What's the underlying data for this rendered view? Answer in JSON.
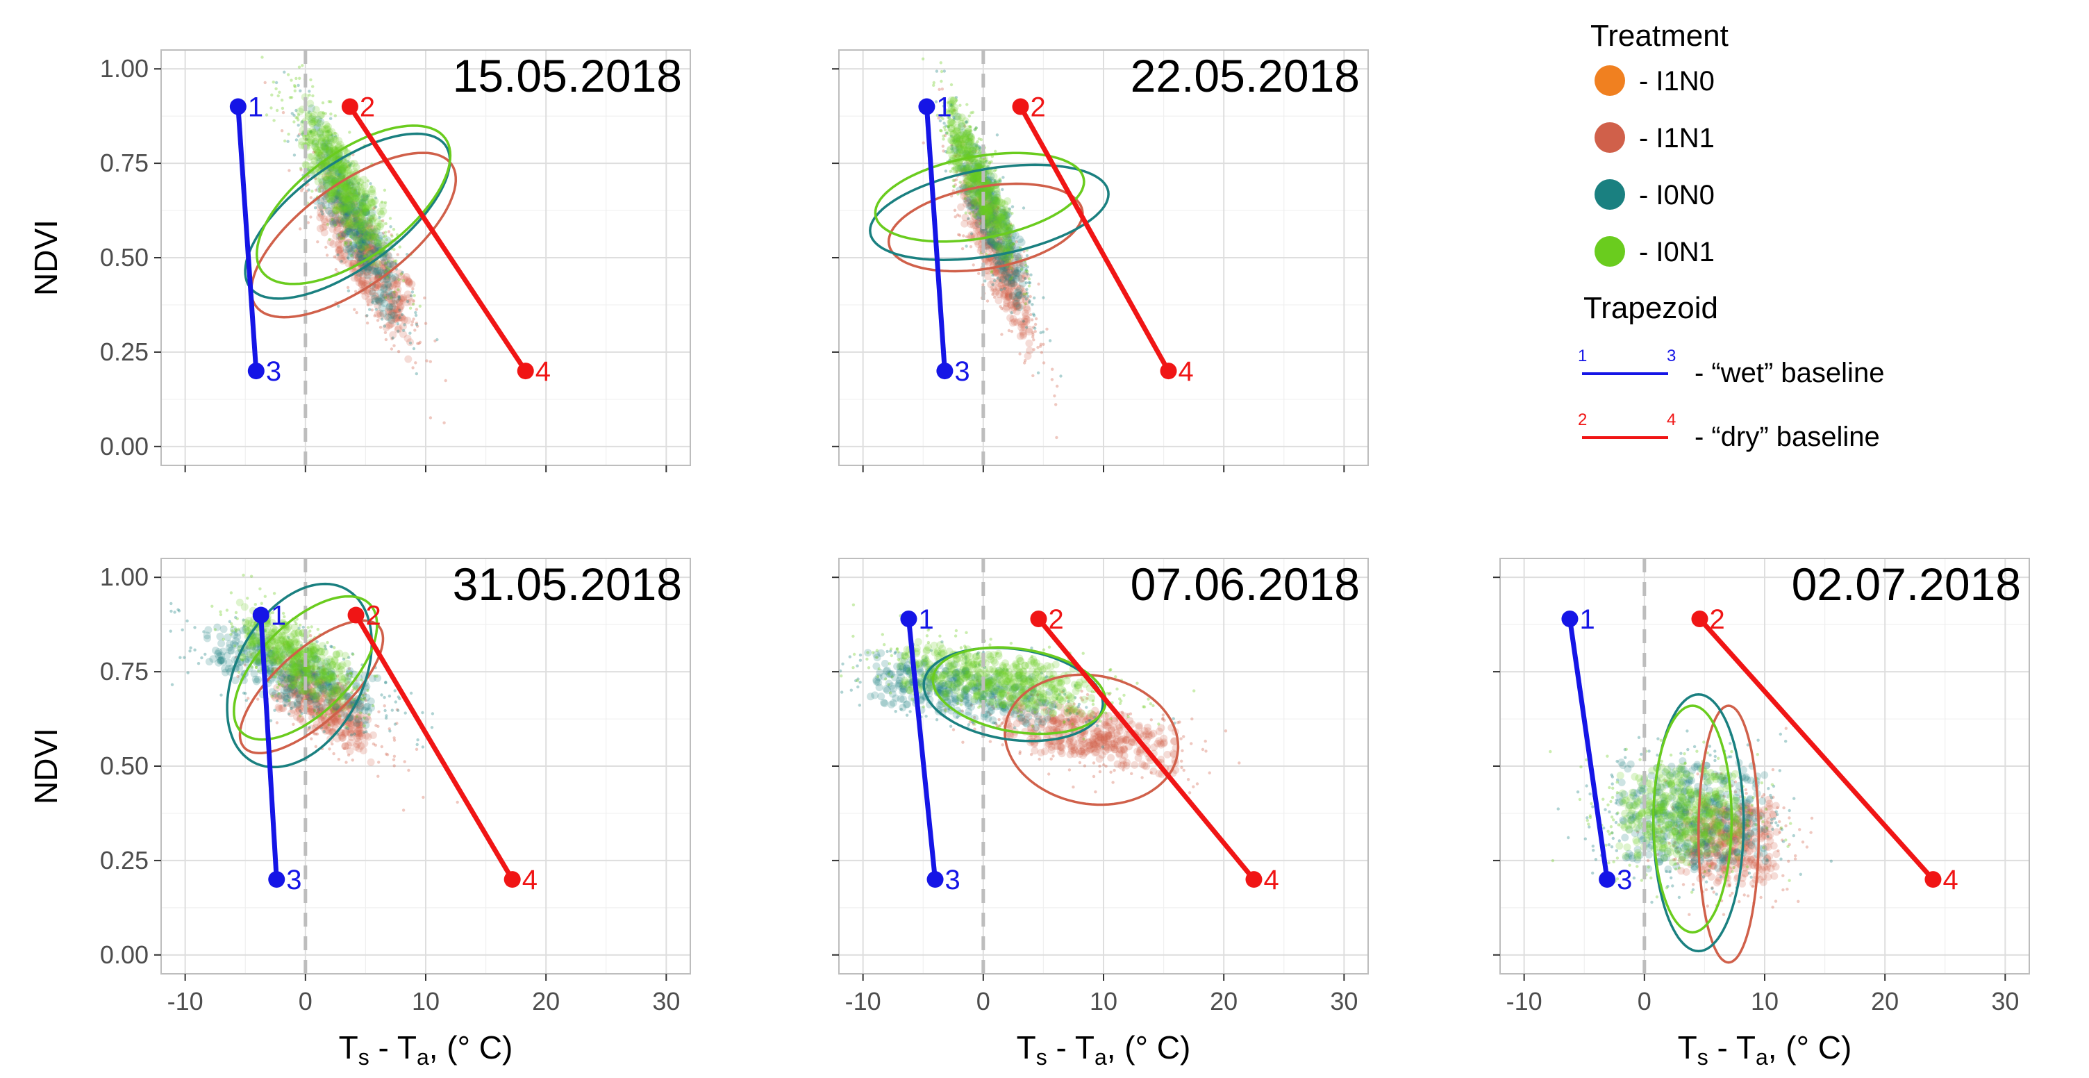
{
  "chart_data": {
    "type": "scatter",
    "axes": {
      "xlabel_main": "T",
      "xlabel_sub1": "s",
      "xlabel_mid": " - T",
      "xlabel_sub2": "a",
      "xlabel_tail": ", (° C)",
      "ylabel": "NDVI",
      "xlim": [
        -12,
        32
      ],
      "ylim": [
        -0.05,
        1.05
      ],
      "xticks": [
        -10,
        0,
        10,
        20,
        30
      ],
      "xtick_labels": [
        "-10",
        "0",
        "10",
        "20",
        "30"
      ],
      "yticks": [
        0,
        0.25,
        0.5,
        0.75,
        1.0
      ],
      "ytick_labels": [
        "0.00",
        "0.25",
        "0.50",
        "0.75",
        "1.00"
      ]
    },
    "legend": {
      "treatment_title": "Treatment",
      "treatments": [
        {
          "label": "- I1N0",
          "color": "#F08020"
        },
        {
          "label": "- I1N1",
          "color": "#D0604A"
        },
        {
          "label": "- I0N0",
          "color": "#1A8080"
        },
        {
          "label": "- I0N1",
          "color": "#6ACC1E"
        }
      ],
      "trapezoid_title": "Trapezoid",
      "baselines": [
        {
          "label": "- “wet” baseline",
          "color": "#1515E6",
          "start": "1",
          "end": "3"
        },
        {
          "label": "- “dry” baseline",
          "color": "#F01515",
          "start": "2",
          "end": "4"
        }
      ]
    },
    "panels": [
      {
        "date": "15.05.2018",
        "wet": {
          "p1": [
            -5.6,
            0.9
          ],
          "p3": [
            -4.1,
            0.2
          ]
        },
        "dry": {
          "p2": [
            3.7,
            0.9
          ],
          "p4": [
            18.3,
            0.2
          ]
        },
        "ellipses": [
          {
            "treatment": "I1N1",
            "cx": 4.0,
            "cy": 0.56,
            "rx": 8.5,
            "ry": 0.16,
            "angle": -54
          },
          {
            "treatment": "I0N0",
            "cx": 3.5,
            "cy": 0.61,
            "rx": 8.6,
            "ry": 0.16,
            "angle": -54
          },
          {
            "treatment": "I0N1",
            "cx": 4.0,
            "cy": 0.64,
            "rx": 8.8,
            "ry": 0.15,
            "angle": -54
          }
        ],
        "clouds": [
          {
            "treatment": "I1N1",
            "cx": 5.0,
            "cy": 0.5,
            "sx": 2.4,
            "sy": 0.13,
            "corr": -0.85,
            "n": 520
          },
          {
            "treatment": "I0N0",
            "cx": 4.0,
            "cy": 0.6,
            "sx": 2.2,
            "sy": 0.14,
            "corr": -0.85,
            "n": 420
          },
          {
            "treatment": "I0N1",
            "cx": 3.0,
            "cy": 0.7,
            "sx": 2.2,
            "sy": 0.12,
            "corr": -0.85,
            "n": 560
          }
        ]
      },
      {
        "date": "22.05.2018",
        "wet": {
          "p1": [
            -4.7,
            0.9
          ],
          "p3": [
            -3.2,
            0.2
          ]
        },
        "dry": {
          "p2": [
            3.1,
            0.9
          ],
          "p4": [
            15.4,
            0.2
          ]
        },
        "ellipses": [
          {
            "treatment": "I1N1",
            "cx": 0.2,
            "cy": 0.58,
            "rx": 6.8,
            "ry": 0.13,
            "angle": -80
          },
          {
            "treatment": "I0N0",
            "cx": 0.5,
            "cy": 0.62,
            "rx": 7.2,
            "ry": 0.16,
            "angle": -80
          },
          {
            "treatment": "I0N1",
            "cx": -0.3,
            "cy": 0.66,
            "rx": 6.8,
            "ry": 0.14,
            "angle": -80
          }
        ],
        "clouds": [
          {
            "treatment": "I1N1",
            "cx": 1.0,
            "cy": 0.52,
            "sx": 1.8,
            "sy": 0.14,
            "corr": -0.85,
            "n": 460
          },
          {
            "treatment": "I0N0",
            "cx": 0.5,
            "cy": 0.62,
            "sx": 1.8,
            "sy": 0.13,
            "corr": -0.85,
            "n": 380
          },
          {
            "treatment": "I0N1",
            "cx": -0.3,
            "cy": 0.7,
            "sx": 1.6,
            "sy": 0.11,
            "corr": -0.85,
            "n": 520
          }
        ]
      },
      {
        "date": "31.05.2018",
        "wet": {
          "p1": [
            -3.7,
            0.9
          ],
          "p3": [
            -2.4,
            0.2
          ]
        },
        "dry": {
          "p2": [
            4.2,
            0.9
          ],
          "p4": [
            17.2,
            0.2
          ]
        },
        "ellipses": [
          {
            "treatment": "I1N1",
            "cx": 0.5,
            "cy": 0.71,
            "rx": 6.0,
            "ry": 0.12,
            "angle": -48
          },
          {
            "treatment": "I0N0",
            "cx": -0.5,
            "cy": 0.74,
            "rx": 10.5,
            "ry": 0.13,
            "angle": -28
          },
          {
            "treatment": "I0N1",
            "cx": 0.0,
            "cy": 0.76,
            "rx": 7.5,
            "ry": 0.12,
            "angle": -45
          }
        ],
        "clouds": [
          {
            "treatment": "I1N1",
            "cx": 1.5,
            "cy": 0.66,
            "sx": 2.6,
            "sy": 0.07,
            "corr": -0.7,
            "n": 440
          },
          {
            "treatment": "I0N0",
            "cx": -1.0,
            "cy": 0.74,
            "sx": 4.5,
            "sy": 0.07,
            "corr": -0.7,
            "n": 420
          },
          {
            "treatment": "I0N1",
            "cx": -1.0,
            "cy": 0.79,
            "sx": 2.8,
            "sy": 0.07,
            "corr": -0.7,
            "n": 520
          }
        ]
      },
      {
        "date": "07.06.2018",
        "wet": {
          "p1": [
            -6.2,
            0.89
          ],
          "p3": [
            -4.0,
            0.2
          ]
        },
        "dry": {
          "p2": [
            4.6,
            0.89
          ],
          "p4": [
            22.5,
            0.2
          ]
        },
        "ellipses": [
          {
            "treatment": "I1N1",
            "cx": 9.0,
            "cy": 0.57,
            "rx": 14.5,
            "ry": 0.085,
            "angle": -10
          },
          {
            "treatment": "I0N0",
            "cx": 2.5,
            "cy": 0.69,
            "rx": 15.0,
            "ry": 0.06,
            "angle": -8
          },
          {
            "treatment": "I0N1",
            "cx": 3.0,
            "cy": 0.7,
            "rx": 14.5,
            "ry": 0.055,
            "angle": -9
          }
        ],
        "clouds": [
          {
            "treatment": "I1N1",
            "cx": 9.0,
            "cy": 0.58,
            "sx": 4.5,
            "sy": 0.05,
            "corr": -0.5,
            "n": 480
          },
          {
            "treatment": "I0N0",
            "cx": -2.0,
            "cy": 0.7,
            "sx": 5.0,
            "sy": 0.05,
            "corr": -0.5,
            "n": 440
          },
          {
            "treatment": "I0N1",
            "cx": 1.0,
            "cy": 0.73,
            "sx": 5.0,
            "sy": 0.05,
            "corr": -0.5,
            "n": 560
          }
        ]
      },
      {
        "date": "02.07.2018",
        "wet": {
          "p1": [
            -6.2,
            0.89
          ],
          "p3": [
            -3.1,
            0.2
          ]
        },
        "dry": {
          "p2": [
            4.6,
            0.89
          ],
          "p4": [
            24.0,
            0.2
          ]
        },
        "ellipses": [
          {
            "treatment": "I1N1",
            "cx": 7.0,
            "cy": 0.32,
            "rx": 5.0,
            "ry": 0.17,
            "angle": 0
          },
          {
            "treatment": "I0N0",
            "cx": 4.5,
            "cy": 0.35,
            "rx": 7.5,
            "ry": 0.17,
            "angle": 0
          },
          {
            "treatment": "I0N1",
            "cx": 4.0,
            "cy": 0.36,
            "rx": 6.5,
            "ry": 0.15,
            "angle": 0
          }
        ],
        "clouds": [
          {
            "treatment": "I1N1",
            "cx": 7.0,
            "cy": 0.3,
            "sx": 2.5,
            "sy": 0.07,
            "corr": 0.0,
            "n": 460
          },
          {
            "treatment": "I0N0",
            "cx": 4.0,
            "cy": 0.37,
            "sx": 3.8,
            "sy": 0.09,
            "corr": 0.0,
            "n": 480
          },
          {
            "treatment": "I0N1",
            "cx": 3.0,
            "cy": 0.37,
            "sx": 3.2,
            "sy": 0.08,
            "corr": 0.0,
            "n": 500
          }
        ]
      }
    ]
  }
}
